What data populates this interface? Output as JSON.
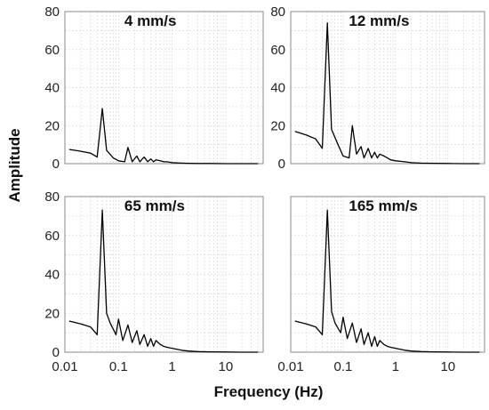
{
  "figure": {
    "xlabel": "Frequency (Hz)",
    "ylabel": "Amplitude"
  },
  "chart_data": [
    {
      "type": "line",
      "title": "4 mm/s",
      "xscale": "log",
      "xlim": [
        0.01,
        50
      ],
      "ylim": [
        0,
        80
      ],
      "yticks": [
        0,
        20,
        40,
        60,
        80
      ],
      "xticks": [],
      "xtick_labels": [],
      "grid": true,
      "series": [
        {
          "x": [
            0.012,
            0.02,
            0.03,
            0.04,
            0.05,
            0.06,
            0.08,
            0.1,
            0.13,
            0.15,
            0.18,
            0.22,
            0.25,
            0.3,
            0.35,
            0.4,
            0.45,
            0.5,
            0.6,
            0.7,
            0.8,
            1,
            1.5,
            2,
            3,
            5,
            10,
            20,
            40
          ],
          "y": [
            7.5,
            6.5,
            5.5,
            3.5,
            29,
            7,
            3,
            1.5,
            1,
            8.5,
            1,
            4,
            1,
            3.5,
            1,
            2.5,
            1,
            2,
            1.5,
            1,
            1,
            0.5,
            0.3,
            0.2,
            0.1,
            0.1,
            0,
            0,
            0
          ]
        }
      ]
    },
    {
      "type": "line",
      "title": "12 mm/s",
      "xscale": "log",
      "xlim": [
        0.01,
        50
      ],
      "ylim": [
        0,
        80
      ],
      "yticks": [
        0,
        20,
        40,
        60,
        80
      ],
      "xticks": [],
      "xtick_labels": [],
      "grid": true,
      "series": [
        {
          "x": [
            0.012,
            0.02,
            0.03,
            0.04,
            0.05,
            0.06,
            0.08,
            0.1,
            0.13,
            0.15,
            0.18,
            0.22,
            0.25,
            0.3,
            0.35,
            0.4,
            0.45,
            0.5,
            0.6,
            0.7,
            0.8,
            1,
            1.5,
            2,
            3,
            5,
            10,
            20,
            40
          ],
          "y": [
            17,
            15,
            13,
            8,
            74,
            18,
            10,
            4,
            3,
            20,
            5,
            9,
            3,
            8,
            3,
            6,
            3,
            5,
            4,
            3,
            2,
            1.5,
            1,
            0.5,
            0.3,
            0.2,
            0.1,
            0,
            0
          ]
        }
      ]
    },
    {
      "type": "line",
      "title": "65 mm/s",
      "xscale": "log",
      "xlim": [
        0.01,
        50
      ],
      "ylim": [
        0,
        80
      ],
      "yticks": [
        0,
        20,
        40,
        60,
        80
      ],
      "xticks": [
        0.01,
        0.1,
        1,
        10
      ],
      "xtick_labels": [
        "0.01",
        "0.1",
        "1",
        "10"
      ],
      "grid": true,
      "series": [
        {
          "x": [
            0.012,
            0.02,
            0.03,
            0.04,
            0.05,
            0.06,
            0.07,
            0.09,
            0.1,
            0.12,
            0.15,
            0.18,
            0.22,
            0.25,
            0.3,
            0.35,
            0.4,
            0.45,
            0.5,
            0.6,
            0.7,
            0.8,
            1,
            1.5,
            2,
            3,
            5,
            10,
            20,
            40
          ],
          "y": [
            16,
            14.5,
            13,
            9,
            73,
            20,
            15,
            9,
            17,
            6,
            14,
            5,
            11,
            4,
            9,
            3,
            7,
            3,
            6,
            4,
            3,
            2.5,
            2,
            1,
            0.6,
            0.3,
            0.2,
            0.1,
            0,
            0
          ]
        }
      ]
    },
    {
      "type": "line",
      "title": "165 mm/s",
      "xscale": "log",
      "xlim": [
        0.01,
        50
      ],
      "ylim": [
        0,
        80
      ],
      "yticks": [],
      "xticks": [
        0.01,
        0.1,
        1,
        10
      ],
      "xtick_labels": [
        "0.01",
        "0.1",
        "1",
        "10"
      ],
      "grid": true,
      "series": [
        {
          "x": [
            0.012,
            0.02,
            0.03,
            0.04,
            0.05,
            0.06,
            0.07,
            0.09,
            0.1,
            0.12,
            0.15,
            0.18,
            0.22,
            0.25,
            0.3,
            0.35,
            0.4,
            0.45,
            0.5,
            0.6,
            0.7,
            0.8,
            1,
            1.5,
            2,
            3,
            5,
            10,
            20,
            40
          ],
          "y": [
            16,
            14.5,
            13,
            9,
            73,
            21,
            15,
            10,
            18,
            7,
            15,
            5,
            12,
            4,
            10,
            3,
            8,
            3,
            6,
            4,
            3,
            2.5,
            2,
            1,
            0.6,
            0.3,
            0.2,
            0.1,
            0,
            0
          ]
        }
      ]
    }
  ]
}
